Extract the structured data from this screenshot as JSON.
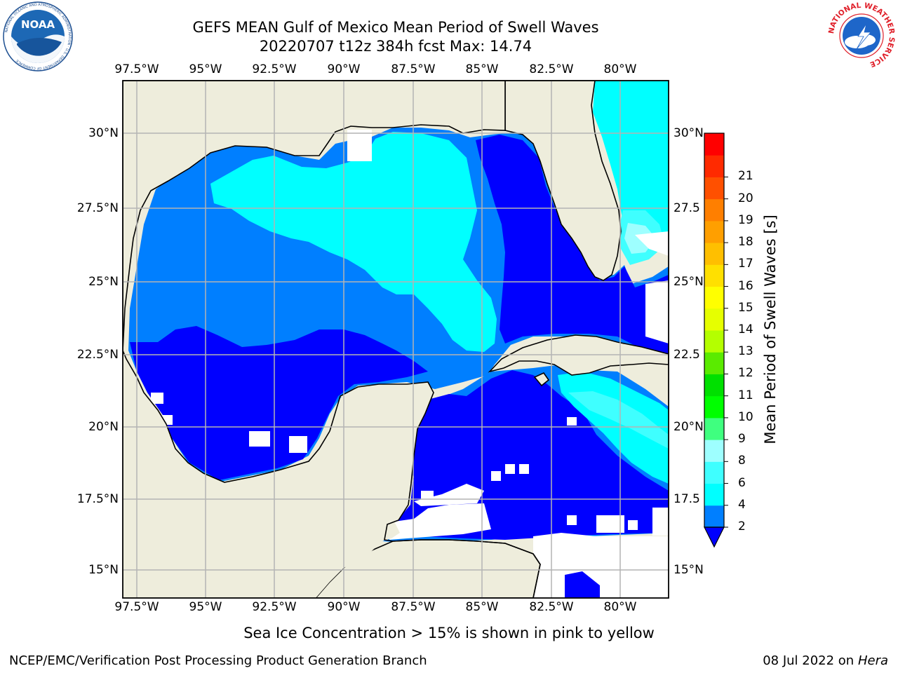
{
  "header": {
    "title_line1": "GEFS MEAN Gulf of Mexico Mean Period of Swell Waves",
    "title_line2": "20220707 t12z 384h fcst   Max: 14.74"
  },
  "logos": {
    "left": "NOAA",
    "left_ring_text": "NATIONAL OCEANIC AND ATMOSPHERIC ADMINISTRATION · U.S. DEPARTMENT OF COMMERCE",
    "right_ring_text": "NATIONAL WEATHER SERVICE"
  },
  "map": {
    "lon_ticks": [
      "97.5°W",
      "95°W",
      "92.5°W",
      "90°W",
      "87.5°W",
      "85°W",
      "82.5°W",
      "80°W"
    ],
    "lat_ticks_left": [
      "30°N",
      "27.5°N",
      "25°N",
      "22.5°N",
      "20°N",
      "17.5°N",
      "15°N"
    ],
    "lat_ticks_right": [
      "30°N",
      "27.5",
      "25°N",
      "22.5",
      "20°N",
      "17.5",
      "15°N"
    ],
    "colors": {
      "land": "#eeeddc",
      "grid": "#b4b4b4",
      "no_data": "#ffffff",
      "coast": "#000000"
    }
  },
  "colorbar": {
    "label": "Mean Period of Swell Waves [s]",
    "tick_labels": [
      "2",
      "4",
      "6",
      "8",
      "9",
      "10",
      "11",
      "12",
      "13",
      "14",
      "15",
      "16",
      "17",
      "18",
      "19",
      "20",
      "21"
    ],
    "extend": "min",
    "under_color": "#0000ff",
    "bin_colors": [
      "#007fff",
      "#00ffff",
      "#3fffff",
      "#9effff",
      "#3fff7f",
      "#00ff00",
      "#00e000",
      "#5aeb00",
      "#b4ff00",
      "#e6ff00",
      "#ffff00",
      "#ffe000",
      "#ffbf00",
      "#ff9f00",
      "#ff7f00",
      "#ff5000",
      "#ff2a00",
      "#ff0000"
    ]
  },
  "footer": {
    "note": "Sea Ice Concentration > 15% is shown in pink to yellow",
    "branch": "NCEP/EMC/Verification Post Processing Product Generation Branch",
    "date": "08 Jul 2022 on ",
    "host": "Hera"
  }
}
